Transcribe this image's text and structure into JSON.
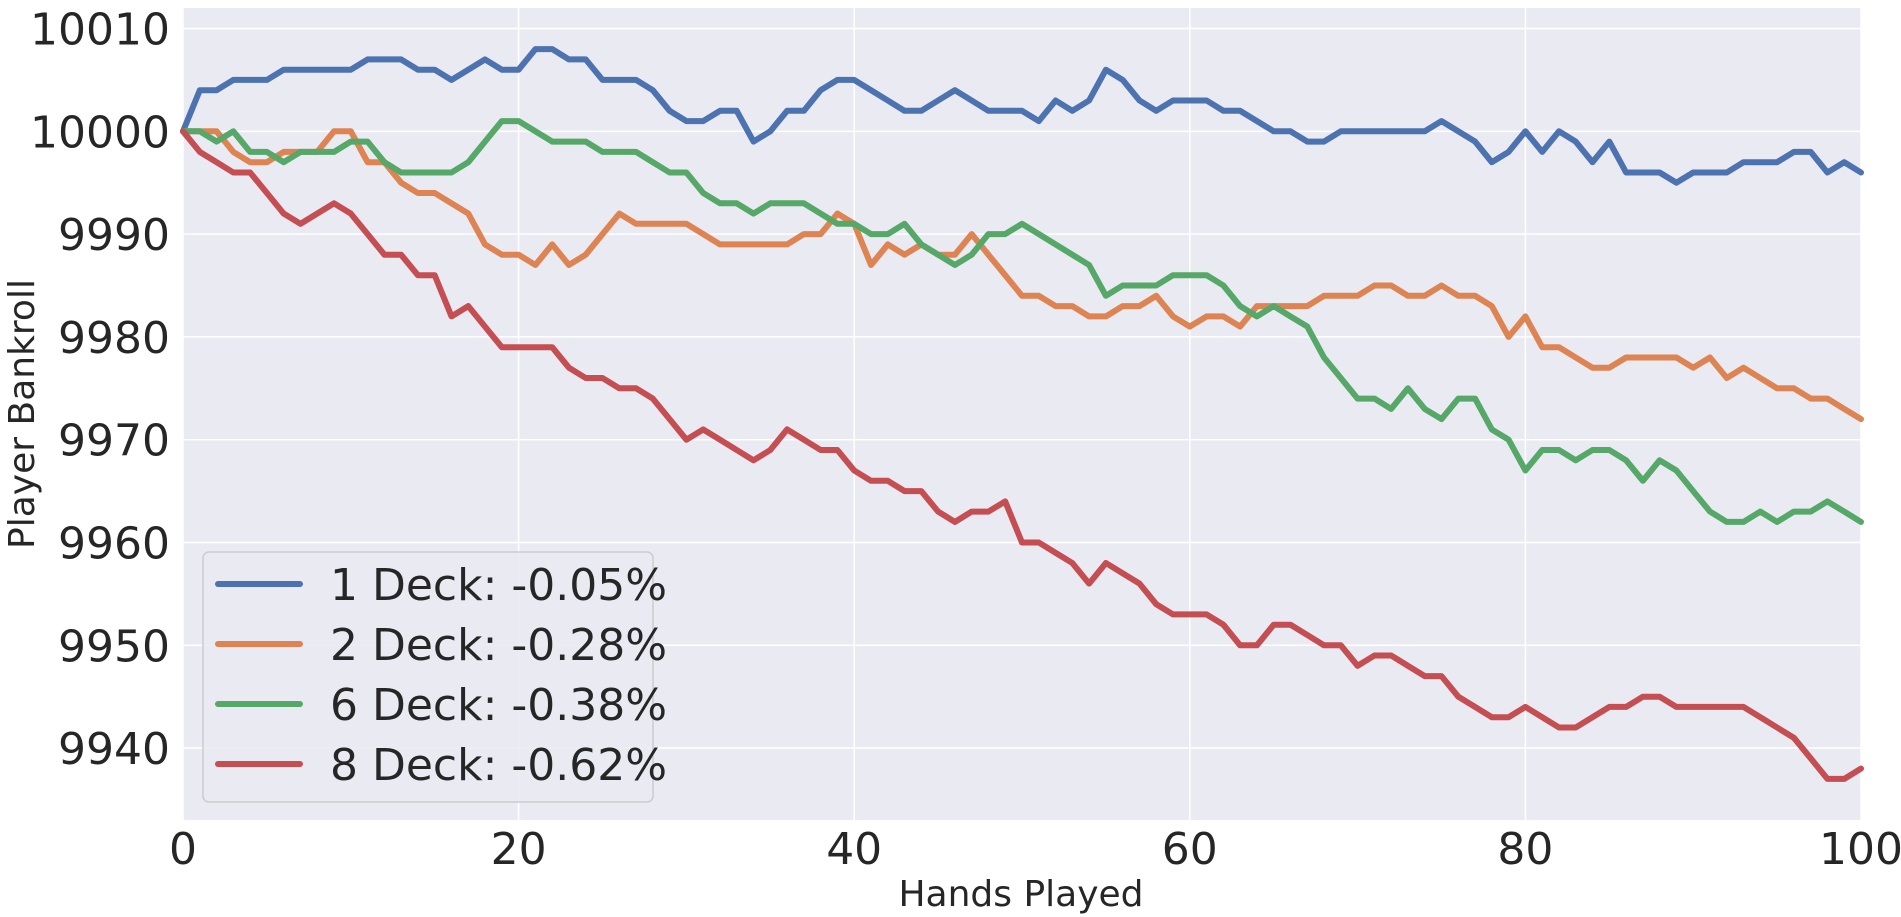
{
  "chart_data": {
    "type": "line",
    "title": "",
    "xlabel": "Hands Played",
    "ylabel": "Player Bankroll",
    "xlim": [
      0,
      100
    ],
    "ylim": [
      9933,
      10012
    ],
    "xticks": [
      0,
      20,
      40,
      60,
      80,
      100
    ],
    "xtick_labels": [
      "0",
      "20",
      "40",
      "60",
      "80",
      "100"
    ],
    "yticks": [
      9940,
      9950,
      9960,
      9970,
      9980,
      9990,
      10000,
      10010
    ],
    "ytick_labels": [
      "9940",
      "9950",
      "9960",
      "9970",
      "9980",
      "9990",
      "10000",
      "10010"
    ],
    "grid": true,
    "legend_position": "lower-left",
    "background": "#eaeaf2",
    "series": [
      {
        "name": "1 Deck: -0.05%",
        "color": "#4c72b0",
        "x": [
          0,
          1,
          2,
          3,
          4,
          5,
          6,
          7,
          8,
          9,
          10,
          11,
          12,
          13,
          14,
          15,
          16,
          17,
          18,
          19,
          20,
          21,
          22,
          23,
          24,
          25,
          26,
          27,
          28,
          29,
          30,
          31,
          32,
          33,
          34,
          35,
          36,
          37,
          38,
          39,
          40,
          41,
          42,
          43,
          44,
          45,
          46,
          47,
          48,
          49,
          50,
          51,
          52,
          53,
          54,
          55,
          56,
          57,
          58,
          59,
          60,
          61,
          62,
          63,
          64,
          65,
          66,
          67,
          68,
          69,
          70,
          71,
          72,
          73,
          74,
          75,
          76,
          77,
          78,
          79,
          80,
          81,
          82,
          83,
          84,
          85,
          86,
          87,
          88,
          89,
          90,
          91,
          92,
          93,
          94,
          95,
          96,
          97,
          98,
          99,
          100
        ],
        "values": [
          10000,
          10004,
          10004,
          10005,
          10005,
          10005,
          10006,
          10006,
          10006,
          10006,
          10006,
          10007,
          10007,
          10007,
          10006,
          10006,
          10005,
          10006,
          10007,
          10006,
          10006,
          10008,
          10008,
          10007,
          10007,
          10005,
          10005,
          10005,
          10004,
          10002,
          10001,
          10001,
          10002,
          10002,
          9999,
          10000,
          10002,
          10002,
          10004,
          10005,
          10005,
          10004,
          10003,
          10002,
          10002,
          10003,
          10004,
          10003,
          10002,
          10002,
          10002,
          10001,
          10003,
          10002,
          10003,
          10006,
          10005,
          10003,
          10002,
          10003,
          10003,
          10003,
          10002,
          10002,
          10001,
          10000,
          10000,
          9999,
          9999,
          10000,
          10000,
          10000,
          10000,
          10000,
          10000,
          10001,
          10000,
          9999,
          9997,
          9998,
          10000,
          9998,
          10000,
          9999,
          9997,
          9999,
          9996,
          9996,
          9996,
          9995,
          9996,
          9996,
          9996,
          9997,
          9997,
          9997,
          9998,
          9998,
          9996,
          9997,
          9996
        ]
      },
      {
        "name": "2 Deck: -0.28%",
        "color": "#dd8452",
        "x": [
          0,
          1,
          2,
          3,
          4,
          5,
          6,
          7,
          8,
          9,
          10,
          11,
          12,
          13,
          14,
          15,
          16,
          17,
          18,
          19,
          20,
          21,
          22,
          23,
          24,
          25,
          26,
          27,
          28,
          29,
          30,
          31,
          32,
          33,
          34,
          35,
          36,
          37,
          38,
          39,
          40,
          41,
          42,
          43,
          44,
          45,
          46,
          47,
          48,
          49,
          50,
          51,
          52,
          53,
          54,
          55,
          56,
          57,
          58,
          59,
          60,
          61,
          62,
          63,
          64,
          65,
          66,
          67,
          68,
          69,
          70,
          71,
          72,
          73,
          74,
          75,
          76,
          77,
          78,
          79,
          80,
          81,
          82,
          83,
          84,
          85,
          86,
          87,
          88,
          89,
          90,
          91,
          92,
          93,
          94,
          95,
          96,
          97,
          98,
          99,
          100
        ],
        "values": [
          10000,
          10000,
          10000,
          9998,
          9997,
          9997,
          9998,
          9998,
          9998,
          10000,
          10000,
          9997,
          9997,
          9995,
          9994,
          9994,
          9993,
          9992,
          9989,
          9988,
          9988,
          9987,
          9989,
          9987,
          9988,
          9990,
          9992,
          9991,
          9991,
          9991,
          9991,
          9990,
          9989,
          9989,
          9989,
          9989,
          9989,
          9990,
          9990,
          9992,
          9991,
          9987,
          9989,
          9988,
          9989,
          9988,
          9988,
          9990,
          9988,
          9986,
          9984,
          9984,
          9983,
          9983,
          9982,
          9982,
          9983,
          9983,
          9984,
          9982,
          9981,
          9982,
          9982,
          9981,
          9983,
          9983,
          9983,
          9983,
          9984,
          9984,
          9984,
          9985,
          9985,
          9984,
          9984,
          9985,
          9984,
          9984,
          9983,
          9980,
          9982,
          9979,
          9979,
          9978,
          9977,
          9977,
          9978,
          9978,
          9978,
          9978,
          9977,
          9978,
          9976,
          9977,
          9976,
          9975,
          9975,
          9974,
          9974,
          9973,
          9972
        ]
      },
      {
        "name": "6 Deck: -0.38%",
        "color": "#55a868",
        "x": [
          0,
          1,
          2,
          3,
          4,
          5,
          6,
          7,
          8,
          9,
          10,
          11,
          12,
          13,
          14,
          15,
          16,
          17,
          18,
          19,
          20,
          21,
          22,
          23,
          24,
          25,
          26,
          27,
          28,
          29,
          30,
          31,
          32,
          33,
          34,
          35,
          36,
          37,
          38,
          39,
          40,
          41,
          42,
          43,
          44,
          45,
          46,
          47,
          48,
          49,
          50,
          51,
          52,
          53,
          54,
          55,
          56,
          57,
          58,
          59,
          60,
          61,
          62,
          63,
          64,
          65,
          66,
          67,
          68,
          69,
          70,
          71,
          72,
          73,
          74,
          75,
          76,
          77,
          78,
          79,
          80,
          81,
          82,
          83,
          84,
          85,
          86,
          87,
          88,
          89,
          90,
          91,
          92,
          93,
          94,
          95,
          96,
          97,
          98,
          99,
          100
        ],
        "values": [
          10000,
          10000,
          9999,
          10000,
          9998,
          9998,
          9997,
          9998,
          9998,
          9998,
          9999,
          9999,
          9997,
          9996,
          9996,
          9996,
          9996,
          9997,
          9999,
          10001,
          10001,
          10000,
          9999,
          9999,
          9999,
          9998,
          9998,
          9998,
          9997,
          9996,
          9996,
          9994,
          9993,
          9993,
          9992,
          9993,
          9993,
          9993,
          9992,
          9991,
          9991,
          9990,
          9990,
          9991,
          9989,
          9988,
          9987,
          9988,
          9990,
          9990,
          9991,
          9990,
          9989,
          9988,
          9987,
          9984,
          9985,
          9985,
          9985,
          9986,
          9986,
          9986,
          9985,
          9983,
          9982,
          9983,
          9982,
          9981,
          9978,
          9976,
          9974,
          9974,
          9973,
          9975,
          9973,
          9972,
          9974,
          9974,
          9971,
          9970,
          9967,
          9969,
          9969,
          9968,
          9969,
          9969,
          9968,
          9966,
          9968,
          9967,
          9965,
          9963,
          9962,
          9962,
          9963,
          9962,
          9963,
          9963,
          9964,
          9963,
          9962
        ]
      },
      {
        "name": "8 Deck: -0.62%",
        "color": "#c44e52",
        "x": [
          0,
          1,
          2,
          3,
          4,
          5,
          6,
          7,
          8,
          9,
          10,
          11,
          12,
          13,
          14,
          15,
          16,
          17,
          18,
          19,
          20,
          21,
          22,
          23,
          24,
          25,
          26,
          27,
          28,
          29,
          30,
          31,
          32,
          33,
          34,
          35,
          36,
          37,
          38,
          39,
          40,
          41,
          42,
          43,
          44,
          45,
          46,
          47,
          48,
          49,
          50,
          51,
          52,
          53,
          54,
          55,
          56,
          57,
          58,
          59,
          60,
          61,
          62,
          63,
          64,
          65,
          66,
          67,
          68,
          69,
          70,
          71,
          72,
          73,
          74,
          75,
          76,
          77,
          78,
          79,
          80,
          81,
          82,
          83,
          84,
          85,
          86,
          87,
          88,
          89,
          90,
          91,
          92,
          93,
          94,
          95,
          96,
          97,
          98,
          99,
          100
        ],
        "values": [
          10000,
          9998,
          9997,
          9996,
          9996,
          9994,
          9992,
          9991,
          9992,
          9993,
          9992,
          9990,
          9988,
          9988,
          9986,
          9986,
          9982,
          9983,
          9981,
          9979,
          9979,
          9979,
          9979,
          9977,
          9976,
          9976,
          9975,
          9975,
          9974,
          9972,
          9970,
          9971,
          9970,
          9969,
          9968,
          9969,
          9971,
          9970,
          9969,
          9969,
          9967,
          9966,
          9966,
          9965,
          9965,
          9963,
          9962,
          9963,
          9963,
          9964,
          9960,
          9960,
          9959,
          9958,
          9956,
          9958,
          9957,
          9956,
          9954,
          9953,
          9953,
          9953,
          9952,
          9950,
          9950,
          9952,
          9952,
          9951,
          9950,
          9950,
          9948,
          9949,
          9949,
          9948,
          9947,
          9947,
          9945,
          9944,
          9943,
          9943,
          9944,
          9943,
          9942,
          9942,
          9943,
          9944,
          9944,
          9945,
          9945,
          9944,
          9944,
          9944,
          9944,
          9944,
          9943,
          9942,
          9941,
          9939,
          9937,
          9937,
          9938
        ]
      }
    ]
  }
}
